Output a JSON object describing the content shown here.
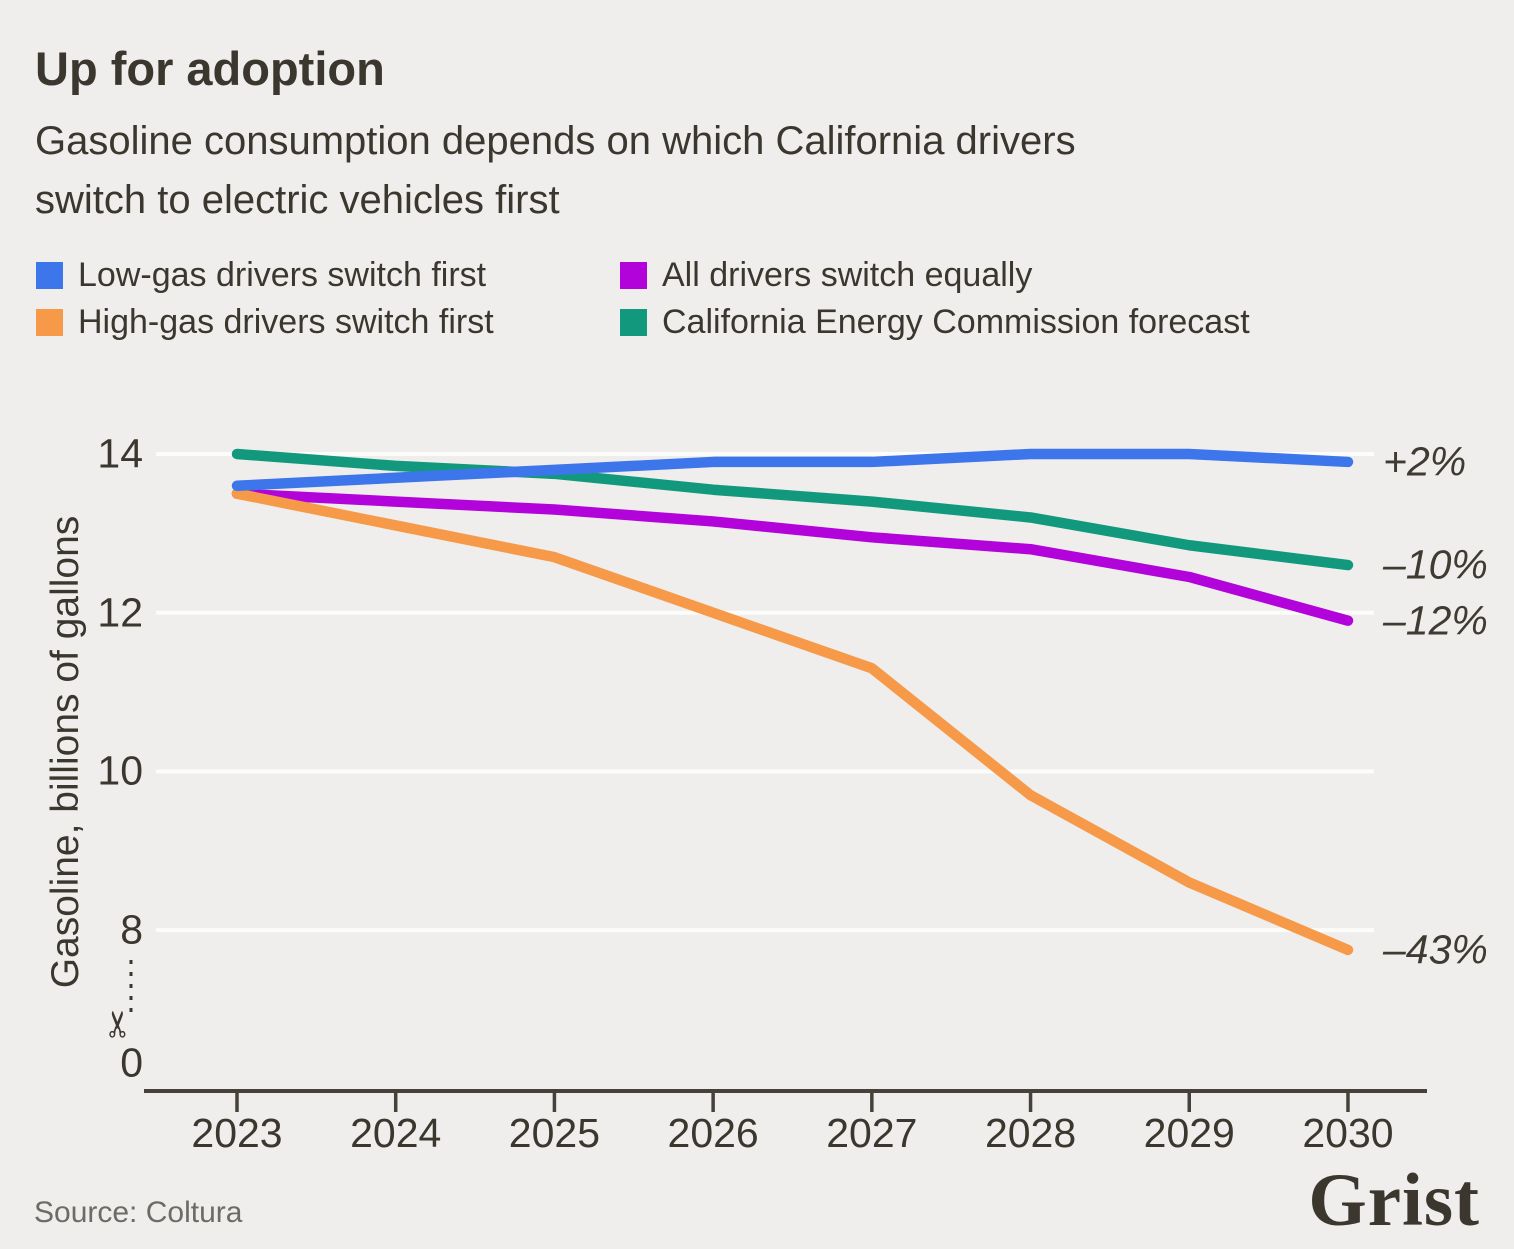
{
  "title": "Up for adoption",
  "subtitle": {
    "line1": "Gasoline consumption depends on which California drivers",
    "line2": "switch to electric vehicles first"
  },
  "source": "Source: Coltura",
  "logo": "Grist",
  "icons": {
    "scissors": "✂"
  },
  "colors": {
    "background": "#efeeec",
    "text": "#3b372f",
    "muted_text": "#6e6b66",
    "gridline": "#fcfcfb",
    "axis": "#46423b",
    "blue": "#3d76eb",
    "orange": "#f69a4a",
    "purple": "#b204da",
    "teal": "#12997d"
  },
  "legend": {
    "items": [
      {
        "label": "Low-gas drivers switch first",
        "series_index": 3
      },
      {
        "label": "All drivers switch equally",
        "series_index": 1
      },
      {
        "label": "High-gas drivers switch first",
        "series_index": 2
      },
      {
        "label": "California Energy Commission forecast",
        "series_index": 0
      }
    ]
  },
  "chart_data": {
    "type": "line",
    "title": "Up for adoption",
    "subtitle": "Gasoline consumption depends on which California drivers switch to electric vehicles first",
    "xlabel": "",
    "ylabel": "Gasoline, billions of gallons",
    "x": [
      2023,
      2024,
      2025,
      2026,
      2027,
      2028,
      2029,
      2030
    ],
    "x_tick_labels": [
      "2023",
      "2024",
      "2025",
      "2026",
      "2027",
      "2028",
      "2029",
      "2030"
    ],
    "y_ticks": [
      {
        "label": "14",
        "value": 14
      },
      {
        "label": "12",
        "value": 12
      },
      {
        "label": "10",
        "value": 10
      },
      {
        "label": "8",
        "value": 8
      },
      {
        "label": "0",
        "value": 0
      }
    ],
    "axis_break_between": [
      0,
      8
    ],
    "grid": true,
    "legend_position": "top",
    "series": [
      {
        "name": "California Energy Commission forecast",
        "color": "#12997d",
        "values": [
          14.0,
          13.85,
          13.75,
          13.55,
          13.4,
          13.2,
          12.85,
          12.6
        ],
        "end_label": "–10%"
      },
      {
        "name": "All drivers switch equally",
        "color": "#b204da",
        "values": [
          13.5,
          13.4,
          13.3,
          13.15,
          12.95,
          12.8,
          12.45,
          11.9
        ],
        "end_label": "–12%"
      },
      {
        "name": "High-gas drivers switch first",
        "color": "#f69a4a",
        "values": [
          13.5,
          13.1,
          12.7,
          12.0,
          11.3,
          9.7,
          8.6,
          7.75
        ],
        "end_label": "–43%"
      },
      {
        "name": "Low-gas drivers switch first",
        "color": "#3d76eb",
        "values": [
          13.6,
          13.7,
          13.8,
          13.9,
          13.9,
          14.0,
          14.0,
          13.9
        ],
        "end_label": "+2%"
      }
    ]
  }
}
